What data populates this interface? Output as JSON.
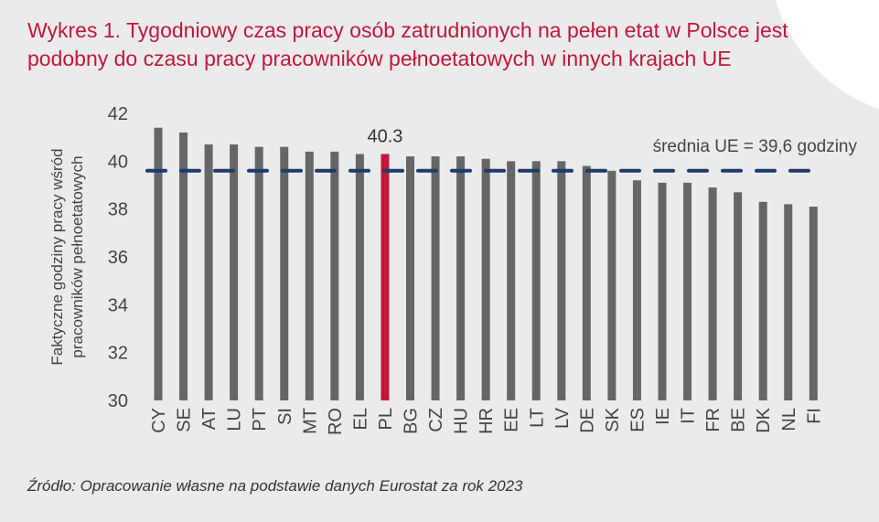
{
  "chart_data": {
    "type": "bar",
    "title": "Wykres 1. Tygodniowy czas pracy osób zatrudnionych na pełen etat w Polsce jest podobny do czasu pracy pracowników pełnoetatowych w innych krajach UE",
    "ylabel": [
      "Faktyczne godziny pracy wśród",
      "pracowników pełnoetatowych"
    ],
    "xlabel": "",
    "ylim": [
      30,
      42
    ],
    "yticks": [
      "30",
      "32",
      "34",
      "36",
      "38",
      "40",
      "42"
    ],
    "grid": false,
    "categories": [
      "CY",
      "SE",
      "AT",
      "LU",
      "PT",
      "SI",
      "MT",
      "RO",
      "EL",
      "PL",
      "BG",
      "CZ",
      "HU",
      "HR",
      "EE",
      "LT",
      "LV",
      "DE",
      "SK",
      "ES",
      "IE",
      "IT",
      "FR",
      "BE",
      "DK",
      "NL",
      "FI"
    ],
    "values": [
      41.4,
      41.2,
      40.7,
      40.7,
      40.6,
      40.6,
      40.4,
      40.4,
      40.3,
      40.3,
      40.2,
      40.2,
      40.2,
      40.1,
      40.0,
      40.0,
      40.0,
      39.8,
      39.6,
      39.2,
      39.1,
      39.1,
      38.9,
      38.7,
      38.3,
      38.2,
      38.1
    ],
    "highlight": {
      "category": "PL",
      "label": "40.3",
      "color": "#c0173a"
    },
    "bar_color": "#666666",
    "reference_line": {
      "value": 39.6,
      "label": "średnia UE = 39,6 godziny",
      "color": "#1f3a6b",
      "style": "dashed"
    }
  },
  "source": "Źródło: Opracowanie własne na podstawie danych Eurostat za rok 2023"
}
